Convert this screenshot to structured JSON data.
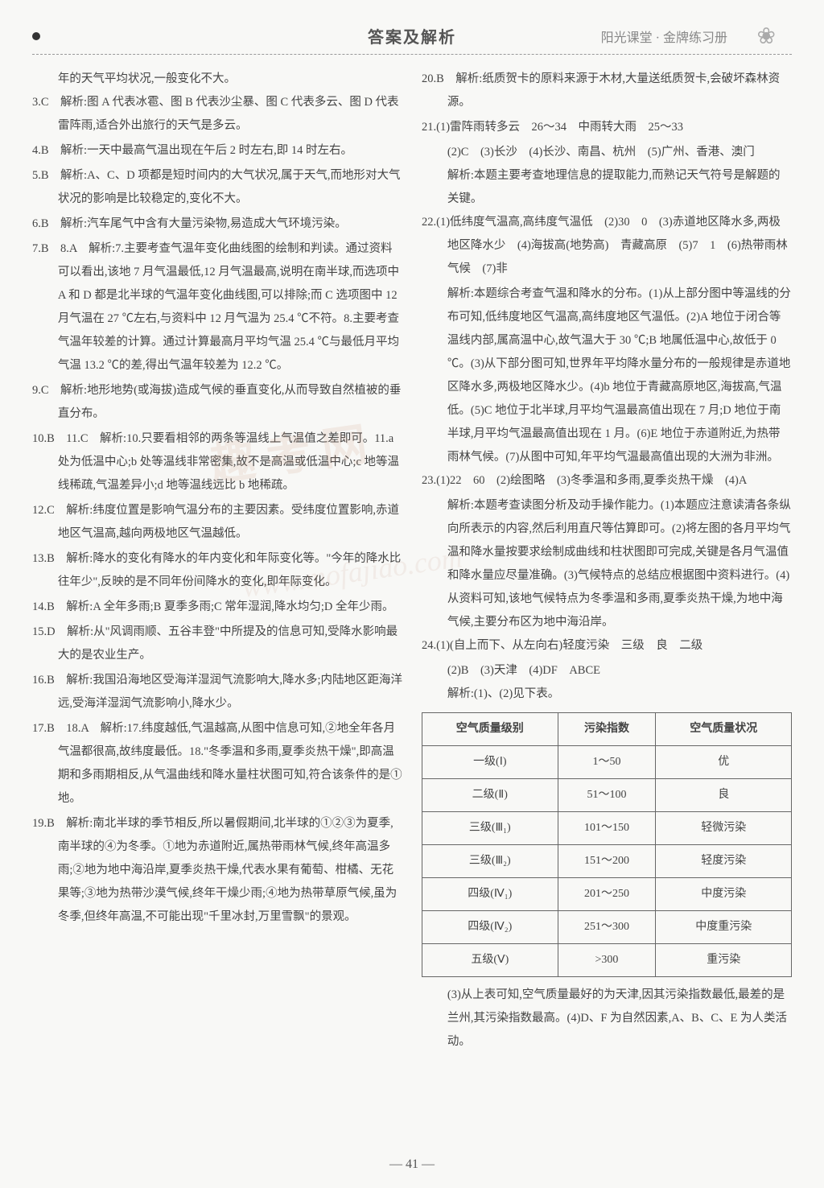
{
  "header": {
    "title": "答案及解析",
    "subtitle": "阳光课堂 · 金牌练习册"
  },
  "watermark": {
    "main": "趣 考 网",
    "url": "www.mofajiao.com"
  },
  "left": {
    "intro": "年的天气平均状况,一般变化不大。",
    "i3": "3.C　解析:图 A 代表冰雹、图 B 代表沙尘暴、图 C 代表多云、图 D 代表雷阵雨,适合外出旅行的天气是多云。",
    "i4": "4.B　解析:一天中最高气温出现在午后 2 时左右,即 14 时左右。",
    "i5": "5.B　解析:A、C、D 项都是短时间内的大气状况,属于天气,而地形对大气状况的影响是比较稳定的,变化不大。",
    "i6": "6.B　解析:汽车尾气中含有大量污染物,易造成大气环境污染。",
    "i7": "7.B　8.A　解析:7.主要考查气温年变化曲线图的绘制和判读。通过资料可以看出,该地 7 月气温最低,12 月气温最高,说明在南半球,而选项中 A 和 D 都是北半球的气温年变化曲线图,可以排除;而 C 选项图中 12 月气温在 27 ℃左右,与资料中 12 月气温为 25.4 ℃不符。8.主要考查气温年较差的计算。通过计算最高月平均气温 25.4 ℃与最低月平均气温 13.2 ℃的差,得出气温年较差为 12.2 ℃。",
    "i9": "9.C　解析:地形地势(或海拔)造成气候的垂直变化,从而导致自然植被的垂直分布。",
    "i10": "10.B　11.C　解析:10.只要看相邻的两条等温线上气温值之差即可。11.a 处为低温中心;b 处等温线非常密集,故不是高温或低温中心;c 地等温线稀疏,气温差异小;d 地等温线远比 b 地稀疏。",
    "i12": "12.C　解析:纬度位置是影响气温分布的主要因素。受纬度位置影响,赤道地区气温高,越向两极地区气温越低。",
    "i13": "13.B　解析:降水的变化有降水的年内变化和年际变化等。\"今年的降水比往年少\",反映的是不同年份间降水的变化,即年际变化。",
    "i14": "14.B　解析:A 全年多雨;B 夏季多雨;C 常年湿润,降水均匀;D 全年少雨。",
    "i15": "15.D　解析:从\"风调雨顺、五谷丰登\"中所提及的信息可知,受降水影响最大的是农业生产。",
    "i16": "16.B　解析:我国沿海地区受海洋湿润气流影响大,降水多;内陆地区距海洋远,受海洋湿润气流影响小,降水少。",
    "i17": "17.B　18.A　解析:17.纬度越低,气温越高,从图中信息可知,②地全年各月气温都很高,故纬度最低。18.\"冬季温和多雨,夏季炎热干燥\",即高温期和多雨期相反,从气温曲线和降水量柱状图可知,符合该条件的是①地。",
    "i19": "19.B　解析:南北半球的季节相反,所以暑假期间,北半球的①②③为夏季,南半球的④为冬季。①地为赤道附近,属热带雨林气候,终年高温多雨;②地为地中海沿岸,夏季炎热干燥,代表水果有葡萄、柑橘、无花果等;③地为热带沙漠气候,终年干燥少雨;④地为热带草原气候,虽为冬季,但终年高温,不可能出现\"千里冰封,万里雪飘\"的景观。"
  },
  "right": {
    "i20": "20.B　解析:纸质贺卡的原料来源于木材,大量送纸质贺卡,会破坏森林资源。",
    "i21a": "21.(1)雷阵雨转多云　26～34　中雨转大雨　25～33",
    "i21b": "(2)C　(3)长沙　(4)长沙、南昌、杭州　(5)广州、香港、澳门",
    "i21c": "解析:本题主要考查地理信息的提取能力,而熟记天气符号是解题的关键。",
    "i22a": "22.(1)低纬度气温高,高纬度气温低　(2)30　0　(3)赤道地区降水多,两极地区降水少　(4)海拔高(地势高)　青藏高原　(5)7　1　(6)热带雨林气候　(7)非",
    "i22b": "解析:本题综合考查气温和降水的分布。(1)从上部分图中等温线的分布可知,低纬度地区气温高,高纬度地区气温低。(2)A 地位于闭合等温线内部,属高温中心,故气温大于 30 ℃;B 地属低温中心,故低于 0 ℃。(3)从下部分图可知,世界年平均降水量分布的一般规律是赤道地区降水多,两极地区降水少。(4)b 地位于青藏高原地区,海拔高,气温低。(5)C 地位于北半球,月平均气温最高值出现在 7 月;D 地位于南半球,月平均气温最高值出现在 1 月。(6)E 地位于赤道附近,为热带雨林气候。(7)从图中可知,年平均气温最高值出现的大洲为非洲。",
    "i23a": "23.(1)22　60　(2)绘图略　(3)冬季温和多雨,夏季炎热干燥　(4)A",
    "i23b": "解析:本题考查读图分析及动手操作能力。(1)本题应注意读清各条纵向所表示的内容,然后利用直尺等估算即可。(2)将左图的各月平均气温和降水量按要求绘制成曲线和柱状图即可完成,关键是各月气温值和降水量应尽量准确。(3)气候特点的总结应根据图中资料进行。(4)从资料可知,该地气候特点为冬季温和多雨,夏季炎热干燥,为地中海气候,主要分布区为地中海沿岸。",
    "i24a": "24.(1)(自上而下、从左向右)轻度污染　三级　良　二级",
    "i24b": "(2)B　(3)天津　(4)DF　ABCE",
    "i24c": "解析:(1)、(2)见下表。",
    "i24d": "(3)从上表可知,空气质量最好的为天津,因其污染指数最低,最差的是兰州,其污染指数最高。(4)D、F 为自然因素,A、B、C、E 为人类活动。"
  },
  "table": {
    "headers": [
      "空气质量级别",
      "污染指数",
      "空气质量状况"
    ],
    "rows": [
      [
        "一级(Ⅰ)",
        "1～50",
        "优"
      ],
      [
        "二级(Ⅱ)",
        "51～100",
        "良"
      ],
      [
        "三级(Ⅲ₁)",
        "101～150",
        "轻微污染"
      ],
      [
        "三级(Ⅲ₂)",
        "151～200",
        "轻度污染"
      ],
      [
        "四级(Ⅳ₁)",
        "201～250",
        "中度污染"
      ],
      [
        "四级(Ⅳ₂)",
        "251～300",
        "中度重污染"
      ],
      [
        "五级(Ⅴ)",
        ">300",
        "重污染"
      ]
    ]
  },
  "page": "— 41 —"
}
